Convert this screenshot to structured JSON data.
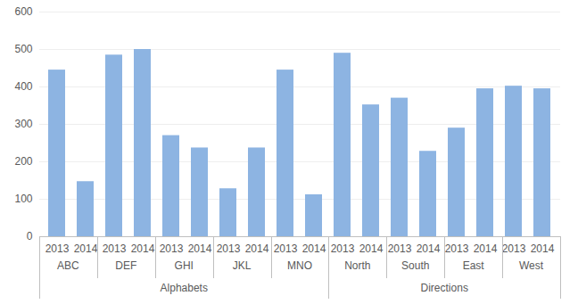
{
  "chart_data": {
    "type": "bar",
    "color": "#8db4e2",
    "ylim": [
      0,
      600
    ],
    "yticks": [
      0,
      100,
      200,
      300,
      400,
      500,
      600
    ],
    "grid": true,
    "groups": [
      {
        "name": "Alphabets",
        "subgroups": [
          {
            "name": "ABC",
            "categories": [
              "2013",
              "2014"
            ],
            "values": [
              445,
              147
            ]
          },
          {
            "name": "DEF",
            "categories": [
              "2013",
              "2014"
            ],
            "values": [
              485,
              500
            ]
          },
          {
            "name": "GHI",
            "categories": [
              "2013",
              "2014"
            ],
            "values": [
              270,
              237
            ]
          },
          {
            "name": "JKL",
            "categories": [
              "2013",
              "2014"
            ],
            "values": [
              128,
              237
            ]
          },
          {
            "name": "MNO",
            "categories": [
              "2013",
              "2014"
            ],
            "values": [
              445,
              112
            ]
          }
        ]
      },
      {
        "name": "Directions",
        "subgroups": [
          {
            "name": "North",
            "categories": [
              "2013",
              "2014"
            ],
            "values": [
              490,
              352
            ]
          },
          {
            "name": "South",
            "categories": [
              "2013",
              "2014"
            ],
            "values": [
              370,
              228
            ]
          },
          {
            "name": "East",
            "categories": [
              "2013",
              "2014"
            ],
            "values": [
              290,
              395
            ]
          },
          {
            "name": "West",
            "categories": [
              "2013",
              "2014"
            ],
            "values": [
              402,
              395
            ]
          }
        ]
      }
    ]
  }
}
